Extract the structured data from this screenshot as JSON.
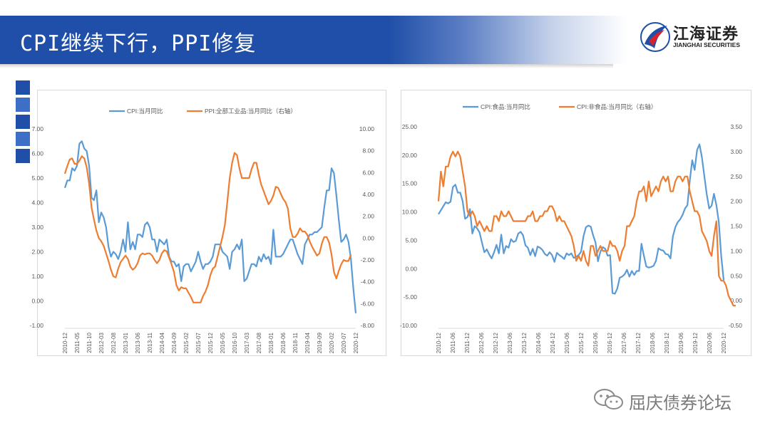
{
  "header": {
    "title": "CPI继续下行，PPI修复"
  },
  "logo": {
    "name_cn": "江海证券",
    "name_en": "JIANGHAI SECURITIES"
  },
  "watermark": {
    "text": "屈庆债券论坛"
  },
  "colors": {
    "banner": "#1f4fa8",
    "series_blue": "#5b9bd5",
    "series_orange": "#ed7d31",
    "squares": [
      "#1f4fa8",
      "#3d6fc7",
      "#1f4fa8",
      "#3d6fc7",
      "#1f4fa8"
    ]
  },
  "chart_data": [
    {
      "type": "line",
      "x_tick_labels": [
        "2010-12",
        "2011-05",
        "2011-10",
        "2012-03",
        "2012-08",
        "2013-01",
        "2013-06",
        "2013-11",
        "2014-04",
        "2014-09",
        "2015-02",
        "2015-07",
        "2015-12",
        "2016-05",
        "2016-10",
        "2017-03",
        "2017-08",
        "2018-01",
        "2018-06",
        "2018-11",
        "2019-04",
        "2019-09",
        "2020-02",
        "2020-07",
        "2020-12"
      ],
      "legend_position": "top",
      "y_left": {
        "min": -1.0,
        "max": 7.0,
        "ticks": [
          "-1.00",
          "0.00",
          "1.00",
          "2.00",
          "3.00",
          "4.00",
          "5.00",
          "6.00",
          "7.00"
        ]
      },
      "y_right": {
        "min": -8.0,
        "max": 10.0,
        "ticks": [
          "-8.00",
          "-6.00",
          "-4.00",
          "-2.00",
          "0.00",
          "2.00",
          "4.00",
          "6.00",
          "8.00",
          "10.00"
        ]
      },
      "series": [
        {
          "name": "CPI:当月同比",
          "axis": "left",
          "color": "#5b9bd5",
          "values": [
            4.6,
            4.9,
            4.9,
            5.4,
            5.3,
            5.5,
            6.4,
            6.5,
            6.2,
            6.1,
            5.5,
            4.2,
            4.1,
            4.5,
            3.2,
            3.6,
            3.4,
            3.0,
            2.2,
            1.8,
            2.0,
            1.9,
            1.7,
            2.0,
            2.5,
            2.0,
            3.2,
            2.1,
            2.4,
            2.1,
            2.7,
            2.7,
            2.6,
            3.1,
            3.2,
            3.0,
            2.5,
            2.5,
            2.0,
            2.5,
            2.4,
            2.3,
            2.5,
            1.8,
            1.6,
            1.6,
            1.4,
            1.5,
            0.8,
            1.4,
            1.5,
            1.5,
            1.2,
            1.4,
            1.6,
            2.0,
            1.6,
            1.3,
            1.5,
            1.5,
            1.6,
            1.8,
            2.3,
            2.3,
            2.3,
            2.0,
            1.9,
            1.8,
            1.3,
            2.0,
            2.1,
            2.3,
            2.1,
            2.5,
            0.8,
            0.9,
            1.2,
            1.5,
            1.5,
            1.4,
            1.8,
            1.6,
            1.9,
            1.7,
            1.8,
            1.5,
            2.9,
            1.8,
            1.8,
            1.8,
            1.9,
            2.1,
            2.3,
            2.5,
            2.5,
            2.2,
            1.9,
            1.7,
            1.5,
            2.3,
            2.5,
            2.7,
            2.7,
            2.8,
            2.8,
            2.9,
            3.0,
            3.8,
            4.5,
            4.5,
            5.4,
            5.2,
            4.3,
            3.3,
            2.4,
            2.5,
            2.7,
            2.4,
            1.7,
            0.5,
            -0.5
          ]
        },
        {
          "name": "PPI:全部工业品:当月同比（右轴）",
          "axis": "right",
          "color": "#ed7d31",
          "values": [
            5.9,
            6.6,
            7.2,
            7.3,
            6.8,
            6.8,
            7.1,
            7.5,
            7.3,
            6.5,
            5.0,
            2.8,
            1.7,
            0.7,
            0.0,
            -0.3,
            -0.7,
            -1.4,
            -2.1,
            -2.9,
            -3.5,
            -3.6,
            -2.8,
            -2.2,
            -1.9,
            -1.6,
            -1.9,
            -2.6,
            -2.9,
            -2.7,
            -2.3,
            -1.6,
            -1.4,
            -1.5,
            -1.4,
            -1.4,
            -1.6,
            -2.0,
            -2.3,
            -2.0,
            -1.4,
            -1.1,
            -1.2,
            -1.8,
            -2.4,
            -3.1,
            -4.3,
            -4.8,
            -4.5,
            -4.6,
            -4.6,
            -5.0,
            -5.4,
            -5.9,
            -5.9,
            -5.9,
            -5.9,
            -5.3,
            -4.9,
            -4.3,
            -3.4,
            -2.8,
            -2.6,
            -1.7,
            -0.8,
            0.1,
            1.2,
            3.3,
            5.5,
            6.9,
            7.8,
            7.6,
            6.4,
            5.5,
            5.5,
            5.5,
            5.5,
            6.3,
            6.9,
            6.9,
            5.8,
            4.9,
            4.3,
            3.7,
            3.1,
            3.4,
            3.9,
            4.7,
            4.6,
            4.1,
            3.6,
            3.3,
            2.7,
            0.9,
            0.1,
            0.1,
            0.4,
            0.9,
            0.6,
            0.6,
            0.3,
            -0.3,
            -0.8,
            -1.2,
            -1.6,
            -1.4,
            -0.5,
            0.1,
            0.1,
            -0.4,
            -1.5,
            -3.1,
            -3.7,
            -3.0,
            -2.4,
            -2.0,
            -2.1,
            -2.1,
            -1.5
          ]
        }
      ]
    },
    {
      "type": "line",
      "x_tick_labels": [
        "2010-12",
        "2011-06",
        "2011-12",
        "2012-06",
        "2012-12",
        "2013-06",
        "2013-12",
        "2014-06",
        "2014-12",
        "2015-06",
        "2015-12",
        "2016-06",
        "2016-12",
        "2017-06",
        "2017-12",
        "2018-06",
        "2018-12",
        "2019-06",
        "2019-12",
        "2020-06",
        "2020-12"
      ],
      "legend_position": "top",
      "y_left": {
        "min": -10.0,
        "max": 25.0,
        "ticks": [
          "-10.00",
          "-5.00",
          "0.00",
          "5.00",
          "10.00",
          "15.00",
          "20.00",
          "25.00"
        ]
      },
      "y_right": {
        "min": -0.5,
        "max": 3.5,
        "ticks": [
          "-0.50",
          "0.00",
          "0.50",
          "1.00",
          "1.50",
          "2.00",
          "2.50",
          "3.00",
          "3.50"
        ]
      },
      "series": [
        {
          "name": "CPI:食品:当月同比",
          "axis": "left",
          "color": "#5b9bd5",
          "values": [
            9.6,
            10.3,
            11.0,
            11.7,
            11.5,
            11.8,
            14.4,
            14.8,
            13.4,
            13.4,
            11.9,
            8.8,
            9.1,
            10.5,
            6.2,
            7.5,
            7.1,
            6.4,
            4.6,
            2.9,
            3.4,
            2.5,
            1.8,
            2.9,
            4.2,
            2.7,
            6.0,
            2.7,
            4.0,
            3.7,
            5.2,
            4.7,
            4.9,
            6.2,
            6.5,
            5.9,
            4.1,
            3.7,
            2.4,
            3.5,
            2.2,
            3.9,
            3.7,
            3.3,
            2.6,
            2.3,
            2.9,
            2.4,
            1.2,
            2.8,
            2.4,
            2.1,
            1.7,
            2.7,
            2.4,
            2.7,
            1.9,
            2.1,
            2.4,
            3.0,
            5.7,
            7.3,
            7.6,
            7.4,
            5.9,
            4.6,
            1.3,
            3.0,
            3.8,
            3.5,
            2.3,
            2.4,
            -4.3,
            -4.4,
            -3.5,
            -1.6,
            -1.4,
            -1.0,
            -0.2,
            -1.4,
            -0.4,
            -1.1,
            -0.4,
            -0.4,
            4.4,
            2.3,
            0.4,
            0.2,
            0.3,
            0.5,
            1.4,
            3.6,
            3.3,
            3.2,
            2.6,
            2.5,
            1.8,
            5.7,
            7.3,
            8.2,
            8.7,
            9.5,
            10.6,
            11.2,
            15.5,
            19.1,
            17.4,
            20.9,
            21.9,
            19.6,
            16.3,
            13.1,
            10.6,
            11.1,
            13.2,
            11.2,
            8.2,
            2.2,
            -2.0
          ]
        },
        {
          "name": "CPI:非食品:当月同比（右轴）",
          "axis": "right",
          "color": "#ed7d31",
          "values": [
            2.0,
            2.6,
            2.3,
            2.7,
            2.7,
            2.9,
            3.0,
            2.9,
            3.0,
            2.9,
            2.6,
            2.3,
            1.8,
            1.7,
            1.8,
            1.7,
            1.5,
            1.6,
            1.5,
            1.4,
            1.5,
            1.4,
            1.4,
            1.7,
            1.7,
            1.6,
            1.8,
            1.7,
            1.7,
            1.8,
            1.7,
            1.6,
            1.6,
            1.6,
            1.6,
            1.6,
            1.6,
            1.7,
            1.7,
            1.8,
            1.6,
            1.6,
            1.7,
            1.7,
            1.8,
            1.8,
            1.9,
            1.9,
            1.8,
            1.6,
            1.7,
            1.6,
            1.6,
            1.5,
            1.4,
            1.3,
            1.1,
            0.8,
            0.9,
            0.8,
            1.0,
            0.8,
            0.7,
            1.1,
            1.1,
            0.9,
            1.0,
            1.1,
            1.0,
            1.0,
            1.0,
            1.2,
            1.1,
            1.1,
            1.0,
            0.8,
            1.0,
            1.1,
            1.5,
            1.5,
            1.6,
            1.7,
            2.0,
            2.2,
            2.2,
            2.3,
            2.0,
            2.4,
            2.1,
            2.2,
            2.3,
            2.2,
            2.4,
            2.5,
            2.4,
            2.5,
            2.2,
            2.2,
            2.4,
            2.5,
            2.5,
            2.4,
            2.5,
            2.5,
            2.2,
            2.0,
            1.8,
            1.8,
            1.7,
            1.4,
            1.3,
            1.2,
            1.0,
            0.9,
            1.3,
            1.6,
            0.5,
            0.4,
            0.4,
            0.3,
            0.1,
            0.0,
            -0.1,
            -0.1
          ]
        }
      ]
    }
  ]
}
